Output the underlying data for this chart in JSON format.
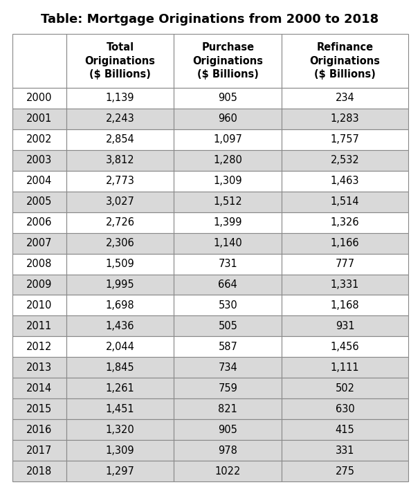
{
  "title": "Table: Mortgage Originations from 2000 to 2018",
  "col_headers": [
    "",
    "Total\nOriginations\n($ Billions)",
    "Purchase\nOriginations\n($ Billions)",
    "Refinance\nOriginations\n($ Billions)"
  ],
  "years": [
    "2000",
    "2001",
    "2002",
    "2003",
    "2004",
    "2005",
    "2006",
    "2007",
    "2008",
    "2009",
    "2010",
    "2011",
    "2012",
    "2013",
    "2014",
    "2015",
    "2016",
    "2017",
    "2018"
  ],
  "total": [
    "1,139",
    "2,243",
    "2,854",
    "3,812",
    "2,773",
    "3,027",
    "2,726",
    "2,306",
    "1,509",
    "1,995",
    "1,698",
    "1,436",
    "2,044",
    "1,845",
    "1,261",
    "1,451",
    "1,320",
    "1,309",
    "1,297"
  ],
  "purchase": [
    "905",
    "960",
    "1,097",
    "1,280",
    "1,309",
    "1,512",
    "1,399",
    "1,140",
    "731",
    "664",
    "530",
    "505",
    "587",
    "734",
    "759",
    "821",
    "905",
    "978",
    "1022"
  ],
  "refinance": [
    "234",
    "1,283",
    "1,757",
    "2,532",
    "1,463",
    "1,514",
    "1,326",
    "1,166",
    "777",
    "1,331",
    "1,168",
    "931",
    "1,456",
    "1,111",
    "502",
    "630",
    "415",
    "331",
    "275"
  ],
  "title_fontsize": 13,
  "header_fontsize": 10.5,
  "cell_fontsize": 10.5,
  "title_color": "#000000",
  "header_bg": "#ffffff",
  "row_bg_white": "#ffffff",
  "row_bg_gray": "#d9d9d9",
  "border_color": "#888888",
  "text_color": "#000000",
  "background_color": "#ffffff",
  "gray_rows": [
    14,
    15,
    16,
    17,
    18
  ]
}
